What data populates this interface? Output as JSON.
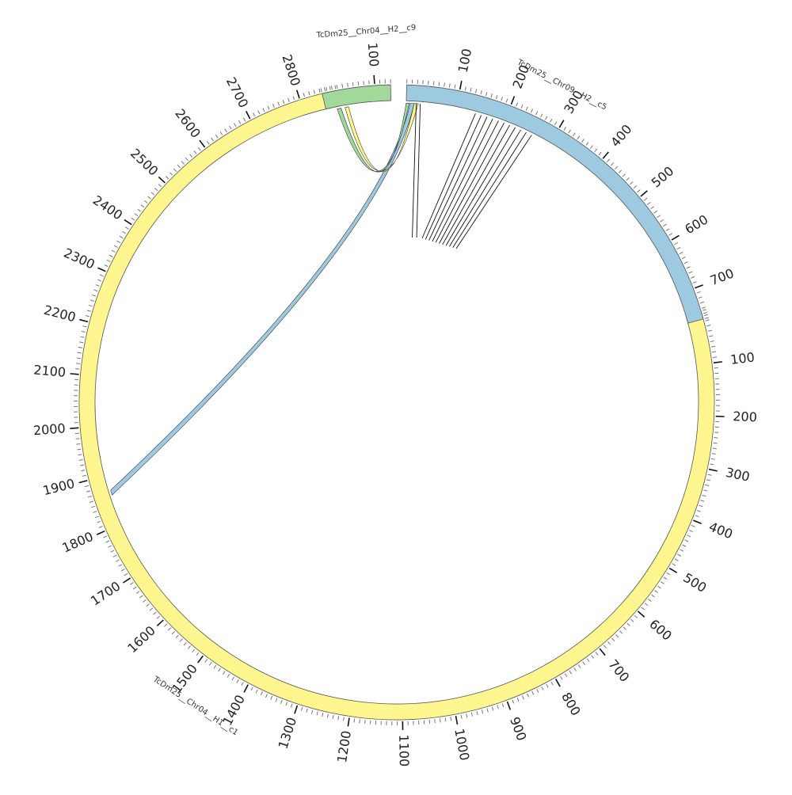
{
  "chart_data": {
    "type": "circos",
    "scale": "bp",
    "segments": [
      {
        "name": "TcDm25__Chr04__H1__c1",
        "length": 2870,
        "color": "#fff68f",
        "tick_labels": [
          "100",
          "200",
          "300",
          "400",
          "500",
          "600",
          "700",
          "800",
          "900",
          "1000",
          "1100",
          "1200",
          "1300",
          "1400",
          "1500",
          "1600",
          "1700",
          "1800",
          "1900",
          "2000",
          "2100",
          "2200",
          "2300",
          "2400",
          "2500",
          "2600",
          "2700",
          "2800"
        ]
      },
      {
        "name": "TcDm25__Chr04__H2__c9",
        "length": 130,
        "color": "#a1d99b",
        "tick_labels": [
          "100"
        ]
      },
      {
        "name": "TcDm25__Chr09__H2__c5",
        "length": 760,
        "color": "#9ecae1",
        "tick_labels": [
          "100",
          "200",
          "300",
          "400",
          "500",
          "600",
          "700"
        ]
      }
    ],
    "ribbons": [
      {
        "color": "#9ecae1",
        "source": {
          "segment": "TcDm25__Chr09__H2__c5",
          "start": 8,
          "end": 16
        },
        "target": {
          "segment": "TcDm25__Chr04__H1__c1",
          "start": 1860,
          "end": 1870
        }
      },
      {
        "color": "#a1d99b",
        "source": {
          "segment": "TcDm25__Chr04__H2__c9",
          "start": 22,
          "end": 30
        },
        "target": {
          "segment": "TcDm25__Chr09__H2__c5",
          "start": 0,
          "end": 6
        }
      },
      {
        "color": "#fff68f",
        "source": {
          "segment": "TcDm25__Chr04__H2__c9",
          "start": 38,
          "end": 45
        },
        "target": {
          "segment": "TcDm25__Chr09__H2__c5",
          "start": 16,
          "end": 24
        }
      }
    ],
    "thin_links": [
      {
        "segment": "TcDm25__Chr09__H2__c5",
        "start": 20
      },
      {
        "segment": "TcDm25__Chr09__H2__c5",
        "start": 28
      },
      {
        "segment": "TcDm25__Chr09__H2__c5",
        "start": 140
      },
      {
        "segment": "TcDm25__Chr09__H2__c5",
        "start": 152
      },
      {
        "segment": "TcDm25__Chr09__H2__c5",
        "start": 164
      },
      {
        "segment": "TcDm25__Chr09__H2__c5",
        "start": 176
      },
      {
        "segment": "TcDm25__Chr09__H2__c5",
        "start": 188
      },
      {
        "segment": "TcDm25__Chr09__H2__c5",
        "start": 200
      },
      {
        "segment": "TcDm25__Chr09__H2__c5",
        "start": 212
      },
      {
        "segment": "TcDm25__Chr09__H2__c5",
        "start": 224
      },
      {
        "segment": "TcDm25__Chr09__H2__c5",
        "start": 236
      },
      {
        "segment": "TcDm25__Chr09__H2__c5",
        "start": 248
      },
      {
        "segment": "TcDm25__Chr09__H2__c5",
        "start": 260
      }
    ]
  }
}
